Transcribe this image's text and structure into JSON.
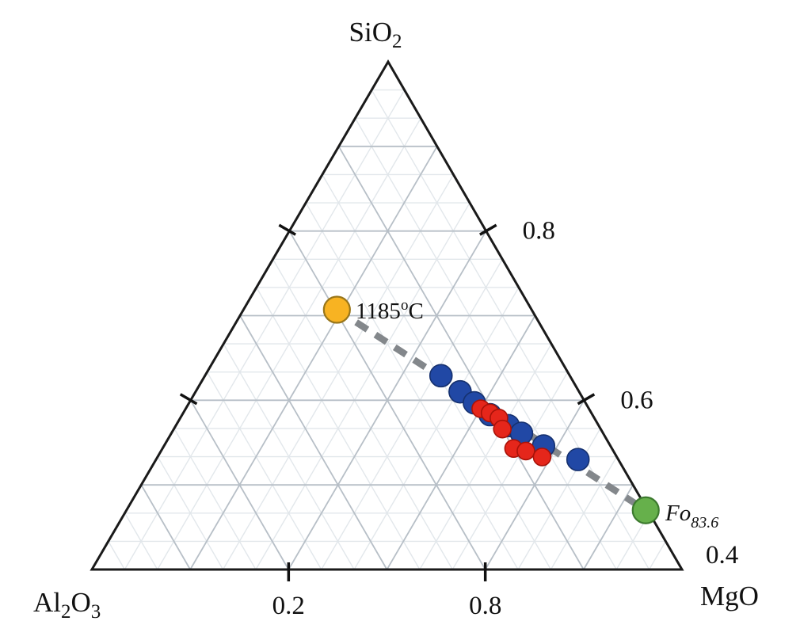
{
  "chart_data": {
    "type": "scatter",
    "subtype": "ternary",
    "vertices": {
      "top": "SiO2",
      "bottom_left": "Al2O3",
      "bottom_right": "MgO"
    },
    "axis": {
      "component_range": {
        "min": 0.4,
        "max": 1.0
      },
      "right_ticks": [
        {
          "label": "0.8",
          "t": 0.3333
        },
        {
          "label": "0.6",
          "t": 0.6667
        },
        {
          "label": "0.4",
          "t": 1.0
        }
      ],
      "bottom_ticks": [
        {
          "label": "0.2",
          "t": 0.3333
        },
        {
          "label": "0.8",
          "t": 0.6667
        }
      ],
      "grid": {
        "fine_divisions": 18,
        "medium_divisions": 6,
        "fine_color": "#e2e7eb",
        "medium_color": "#b7bfc7"
      }
    },
    "series": [
      {
        "name": "blue-circles",
        "color": "#2148a5",
        "stroke": "#16316f",
        "radius": 14,
        "points": [
          [
            0.629,
            0.131,
            0.24
          ],
          [
            0.61,
            0.121,
            0.269
          ],
          [
            0.597,
            0.113,
            0.29
          ],
          [
            0.583,
            0.104,
            0.313
          ],
          [
            0.57,
            0.092,
            0.338
          ],
          [
            0.561,
            0.083,
            0.356
          ],
          [
            0.546,
            0.068,
            0.386
          ],
          [
            0.53,
            0.041,
            0.429
          ]
        ]
      },
      {
        "name": "red-circles",
        "color": "#e5261b",
        "stroke": "#a81208",
        "radius": 11,
        "points": [
          [
            0.59,
            0.11,
            0.3
          ],
          [
            0.585,
            0.103,
            0.312
          ],
          [
            0.579,
            0.097,
            0.324
          ],
          [
            0.566,
            0.1,
            0.334
          ],
          [
            0.543,
            0.1,
            0.357
          ],
          [
            0.54,
            0.089,
            0.371
          ],
          [
            0.533,
            0.076,
            0.391
          ]
        ]
      }
    ],
    "special_points": [
      {
        "name": "melt-1185C",
        "composition": [
          0.707,
          0.198,
          0.095
        ],
        "color": "#f8b322",
        "stroke": "#99761a",
        "radius": 16.5
      },
      {
        "name": "olivine-Fo83.6",
        "composition": [
          0.47,
          0.002,
          0.528
        ],
        "color": "#66b04b",
        "stroke": "#3c7a2e",
        "radius": 16.5
      }
    ],
    "tie_line": {
      "from": "melt-1185C",
      "to": "olivine-Fo83.6",
      "color": "#83878b",
      "width": 8.5,
      "dash": [
        17,
        12
      ]
    },
    "annotations": {
      "melt": {
        "main": "1185",
        "sup": "o",
        "suffix": "C"
      },
      "olivine": {
        "main": "Fo",
        "sub": "83.6"
      },
      "vertex_top": {
        "main": "SiO",
        "sub": "2"
      },
      "vertex_left": {
        "p1": "Al",
        "s1": "2",
        "p2": "O",
        "s2": "3"
      },
      "vertex_right": {
        "main": "MgO"
      }
    }
  }
}
